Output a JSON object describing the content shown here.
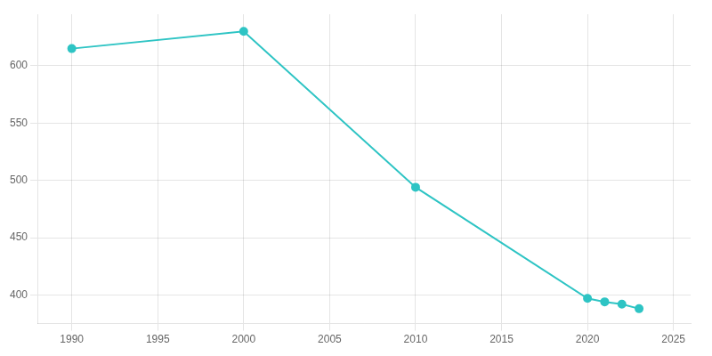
{
  "chart_data": {
    "type": "line",
    "x": [
      1990,
      2000,
      2010,
      2020,
      2021,
      2022,
      2023
    ],
    "values": [
      615,
      630,
      494,
      397,
      394,
      392,
      388
    ],
    "color": "#2EC4C4",
    "marker": "circle",
    "xlim": [
      1988,
      2026
    ],
    "xticks": [
      1990,
      1995,
      2000,
      2005,
      2010,
      2015,
      2020,
      2025
    ],
    "ylim": [
      375,
      645
    ],
    "yticks": [
      400,
      450,
      500,
      550,
      600
    ],
    "grid": true
  }
}
